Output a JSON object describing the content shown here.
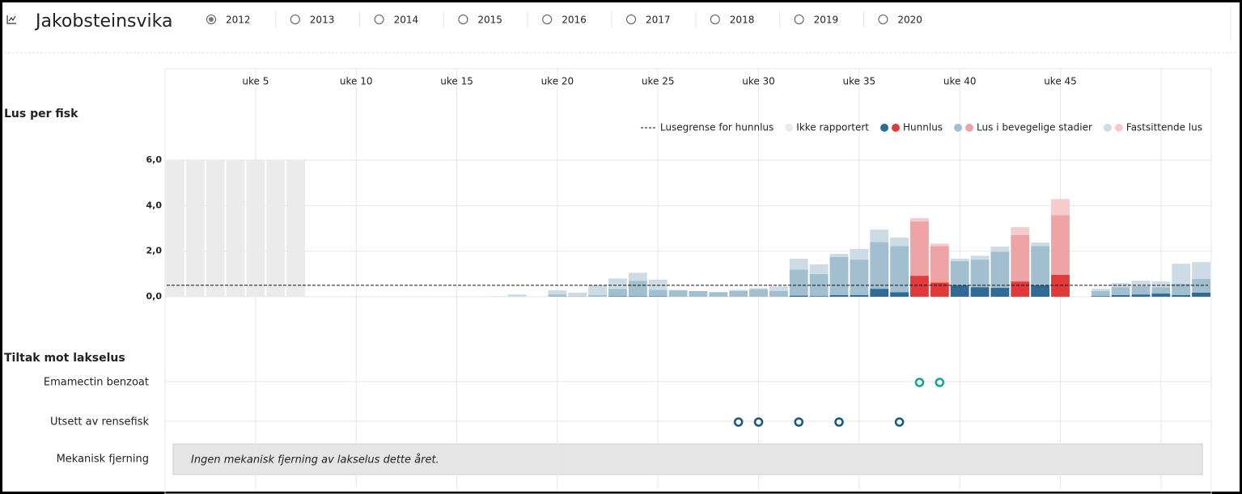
{
  "header": {
    "title": "Jakobsteinsvika",
    "years": [
      "2012",
      "2013",
      "2014",
      "2015",
      "2016",
      "2017",
      "2018",
      "2019",
      "2020"
    ],
    "selected": 0
  },
  "chart_data": {
    "type": "bar",
    "stacked": true,
    "ylabel": "Lus per fisk",
    "x": [
      1,
      2,
      3,
      4,
      5,
      6,
      7,
      8,
      9,
      10,
      11,
      12,
      13,
      14,
      15,
      16,
      17,
      18,
      19,
      20,
      21,
      22,
      23,
      24,
      25,
      26,
      27,
      28,
      29,
      30,
      31,
      32,
      33,
      34,
      35,
      36,
      37,
      38,
      39,
      40,
      41,
      42,
      43,
      44,
      45,
      46,
      47,
      48,
      49,
      50,
      51,
      52
    ],
    "xlim": [
      0.5,
      52.5
    ],
    "xticks": [
      {
        "value": 5,
        "label": "uke 5"
      },
      {
        "value": 10,
        "label": "uke 10"
      },
      {
        "value": 15,
        "label": "uke 15"
      },
      {
        "value": 20,
        "label": "uke 20"
      },
      {
        "value": 25,
        "label": "uke 25"
      },
      {
        "value": 30,
        "label": "uke 30"
      },
      {
        "value": 35,
        "label": "uke 35"
      },
      {
        "value": 40,
        "label": "uke 40"
      },
      {
        "value": 45,
        "label": "uke 45"
      }
    ],
    "xgrid": [
      5,
      10,
      15,
      20,
      25,
      30,
      35,
      40,
      45,
      50
    ],
    "ylim": [
      0,
      6
    ],
    "yticks": [
      {
        "value": 0,
        "label": "0,0"
      },
      {
        "value": 2,
        "label": "2,0"
      },
      {
        "value": 4,
        "label": "4,0"
      },
      {
        "value": 6,
        "label": "6,0"
      }
    ],
    "grid": true,
    "threshold": 0.5,
    "threshold_label": "Lusegrense for hunnlus",
    "series": [
      {
        "name": "Ikke rapportert",
        "color": "#ebebeb",
        "stack": false,
        "values": [
          6,
          6,
          6,
          6,
          6,
          6,
          6,
          null,
          null,
          null,
          null,
          null,
          null,
          null,
          null,
          null,
          null,
          null,
          null,
          null,
          null,
          null,
          null,
          null,
          null,
          null,
          null,
          null,
          null,
          null,
          null,
          null,
          null,
          null,
          null,
          null,
          null,
          null,
          null,
          null,
          null,
          null,
          null,
          null,
          null,
          null,
          null,
          null,
          null,
          null,
          null,
          null
        ]
      },
      {
        "name": "Hunnlus",
        "color": "#2f6b94",
        "alert_color": "#e03a3a",
        "stack": true,
        "values": [
          null,
          null,
          null,
          null,
          null,
          null,
          null,
          0,
          0,
          0,
          0,
          0,
          0,
          0,
          0,
          0,
          0,
          0,
          0,
          0,
          0,
          0,
          0.02,
          0.02,
          0.02,
          0,
          0,
          0,
          0,
          0,
          0,
          0.05,
          0.03,
          0.07,
          0.07,
          0.35,
          0.2,
          0.92,
          0.62,
          0.5,
          0.42,
          0.39,
          0.67,
          0.5,
          0.96,
          0,
          0.03,
          0.07,
          0.1,
          0.14,
          0.07,
          0.18
        ]
      },
      {
        "name": "Lus i bevegelige stadier",
        "color": "#a2bfd0",
        "alert_color": "#eea4a4",
        "stack": true,
        "values": [
          null,
          null,
          null,
          null,
          null,
          null,
          null,
          0,
          0,
          0,
          0,
          0,
          0,
          0,
          0,
          0,
          0,
          0,
          0,
          0.1,
          0.02,
          0.07,
          0.33,
          0.68,
          0.28,
          0.28,
          0.25,
          0.2,
          0.25,
          0.32,
          0.25,
          1.15,
          0.97,
          1.67,
          1.56,
          2.05,
          2.03,
          2.38,
          1.61,
          1.06,
          1.21,
          1.59,
          2.03,
          1.73,
          2.62,
          0,
          0.22,
          0.35,
          0.36,
          0.28,
          0.5,
          0.6
        ]
      },
      {
        "name": "Fastsittende lus",
        "color": "#ccdbe4",
        "alert_color": "#f6cbcb",
        "stack": true,
        "values": [
          null,
          null,
          null,
          null,
          null,
          null,
          null,
          0,
          0,
          0,
          0,
          0,
          0,
          0,
          0,
          0,
          0.02,
          0.1,
          0,
          0.18,
          0.16,
          0.43,
          0.45,
          0.35,
          0.45,
          0.02,
          0,
          0,
          0.05,
          0.06,
          0.2,
          0.47,
          0.42,
          0.14,
          0.47,
          0.55,
          0.37,
          0.15,
          0.1,
          0.11,
          0.17,
          0.22,
          0.35,
          0.15,
          0.71,
          0,
          0.1,
          0.18,
          0.24,
          0.25,
          0.88,
          0.74
        ]
      }
    ]
  },
  "treatments": {
    "title": "Tiltak mot lakselus",
    "rows": [
      {
        "label": "Emamectin benzoat",
        "color": "#1aa38f",
        "weeks": [
          38,
          39
        ]
      },
      {
        "label": "Utsett av rensefisk",
        "color": "#1b5a7e",
        "weeks": [
          29,
          30,
          32,
          34,
          37
        ]
      },
      {
        "label": "Mekanisk fjerning",
        "note": "Ingen mekanisk fjerning av lakselus dette året."
      }
    ]
  }
}
